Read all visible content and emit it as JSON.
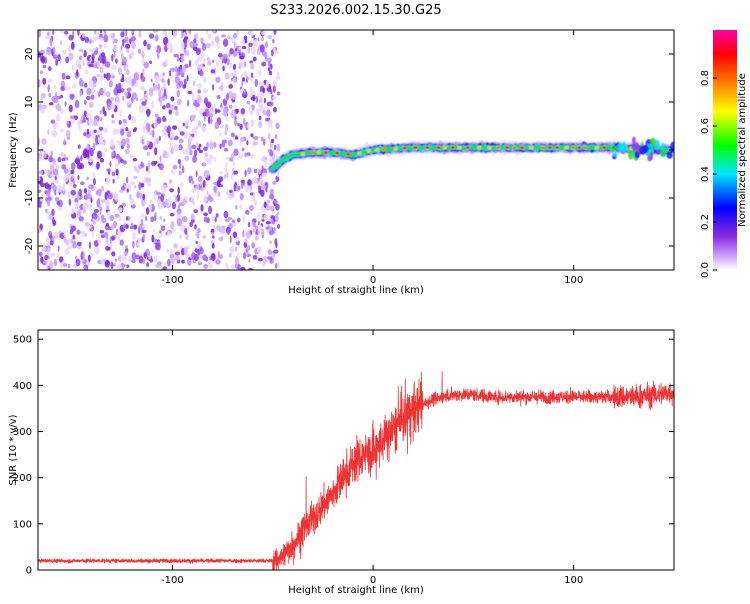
{
  "page": {
    "title": "S233.2026.002.15.30.G25"
  },
  "chart_data": [
    {
      "type": "heatmap",
      "xlabel": "Height of straight line (km)",
      "ylabel": "Frequency (Hz)",
      "xlim": [
        -167,
        150
      ],
      "ylim": [
        -25,
        25
      ],
      "x_ticks": [
        -100,
        0,
        100
      ],
      "x_tick_labels": [
        "-100",
        "0",
        "100"
      ],
      "y_ticks": [
        -20,
        -10,
        0,
        10,
        20
      ],
      "y_tick_labels": [
        "-20",
        "-10",
        "0",
        "10",
        "20"
      ],
      "grid": false,
      "colorbar": {
        "label": "Normalized spectral amplitude",
        "range": [
          0,
          1
        ],
        "ticks": [
          0.0,
          0.2,
          0.4,
          0.6,
          0.8
        ],
        "tick_labels": [
          "0.0",
          "0.2",
          "0.4",
          "0.6",
          "0.8"
        ]
      },
      "ridge": {
        "description_x": [
          -50,
          -45,
          -40,
          -30,
          -20,
          -10,
          0,
          20,
          40,
          60,
          80,
          100,
          120,
          140,
          148
        ],
        "frequency_hz": [
          -4,
          -2,
          -1,
          -0.5,
          -0.5,
          -1,
          0,
          0.5,
          0.5,
          0.5,
          0.5,
          0.5,
          0.5,
          0,
          0
        ]
      },
      "noise_region_x": [
        -167,
        -50
      ]
    },
    {
      "type": "line",
      "xlabel": "Height of straight line (km)",
      "ylabel": "SNR (10 * v/v)",
      "xlim": [
        -167,
        150
      ],
      "ylim": [
        0,
        520
      ],
      "x_ticks": [
        -100,
        0,
        100
      ],
      "x_tick_labels": [
        "-100",
        "0",
        "100"
      ],
      "y_ticks": [
        0,
        100,
        200,
        300,
        400,
        500
      ],
      "y_tick_labels": [
        "0",
        "100",
        "200",
        "300",
        "400",
        "500"
      ],
      "series": [
        {
          "name": "SNR",
          "color": "#ee3333",
          "x": [
            -167,
            -140,
            -120,
            -100,
            -80,
            -60,
            -50,
            -45,
            -40,
            -35,
            -30,
            -25,
            -20,
            -15,
            -10,
            -5,
            0,
            5,
            10,
            15,
            20,
            25,
            30,
            40,
            50,
            60,
            70,
            80,
            90,
            100,
            110,
            120,
            130,
            140,
            150
          ],
          "y": [
            20,
            20,
            20,
            20,
            20,
            20,
            20,
            30,
            55,
            85,
            110,
            140,
            165,
            200,
            230,
            250,
            250,
            280,
            300,
            330,
            345,
            360,
            370,
            380,
            380,
            375,
            375,
            375,
            375,
            375,
            375,
            375,
            375,
            380,
            385
          ]
        }
      ]
    }
  ]
}
